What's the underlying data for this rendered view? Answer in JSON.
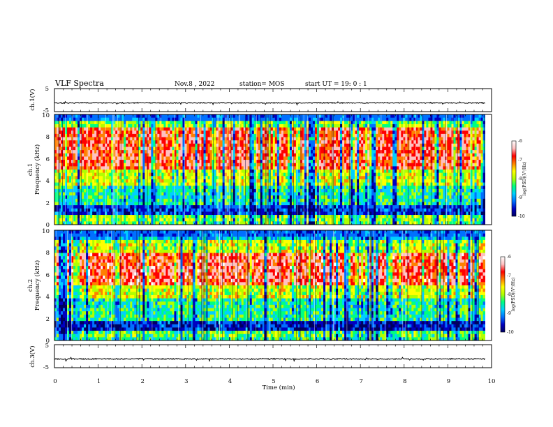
{
  "header": {
    "title": "VLF Spectra",
    "date": "Nov.8 , 2022",
    "station": "station= MOS",
    "start": "start  UT =   19: 0  : 1"
  },
  "chart_data": [
    {
      "type": "line",
      "panel": "ch1 waveform",
      "ylabel": "ch.1(V)",
      "yticks": [
        "5",
        "-5"
      ],
      "ylim": [
        -5,
        5
      ],
      "xlim": [
        0,
        10
      ],
      "baseline": -1.2
    },
    {
      "type": "heatmap",
      "panel": "ch1 spectrogram",
      "ylabel_line1": "ch.1",
      "ylabel_line2": "Frequency (kHz)",
      "yticks": [
        "0",
        "2",
        "4",
        "6",
        "8",
        "10"
      ],
      "ylim": [
        0,
        10
      ],
      "xlim": [
        0,
        10
      ],
      "colorbar": {
        "label": "log(PSD)(V²/Hz)",
        "ticks": [
          "-6",
          "-7",
          "-8",
          "-9",
          "-10"
        ],
        "range": [
          -10,
          -6
        ]
      }
    },
    {
      "type": "heatmap",
      "panel": "ch2 spectrogram",
      "ylabel_line1": "ch.2",
      "ylabel_line2": "Frequency (kHz)",
      "yticks": [
        "0",
        "2",
        "4",
        "6",
        "8",
        "10"
      ],
      "ylim": [
        0,
        10
      ],
      "xlim": [
        0,
        10
      ],
      "colorbar": {
        "label": "log(PSD)(V²/Hz)",
        "ticks": [
          "-6",
          "-7",
          "-8",
          "-9",
          "-10"
        ],
        "range": [
          -10,
          -6
        ]
      }
    },
    {
      "type": "line",
      "panel": "ch3 waveform",
      "ylabel": "ch.3(V)",
      "yticks": [
        "5",
        "-5"
      ],
      "ylim": [
        -5,
        5
      ],
      "xlim": [
        0,
        10
      ],
      "baseline": -1.2
    }
  ],
  "x_axis": {
    "label": "Time  (min)",
    "ticks": [
      "0",
      "1",
      "2",
      "3",
      "4",
      "5",
      "6",
      "7",
      "8",
      "9",
      "10"
    ]
  },
  "colors": {
    "colormap": [
      "#000060",
      "#0000c0",
      "#0070ff",
      "#00d0ff",
      "#00ff80",
      "#b0ff00",
      "#ffff00",
      "#ff8000",
      "#ff0000",
      "#ffc0c0",
      "#ffffff"
    ]
  }
}
